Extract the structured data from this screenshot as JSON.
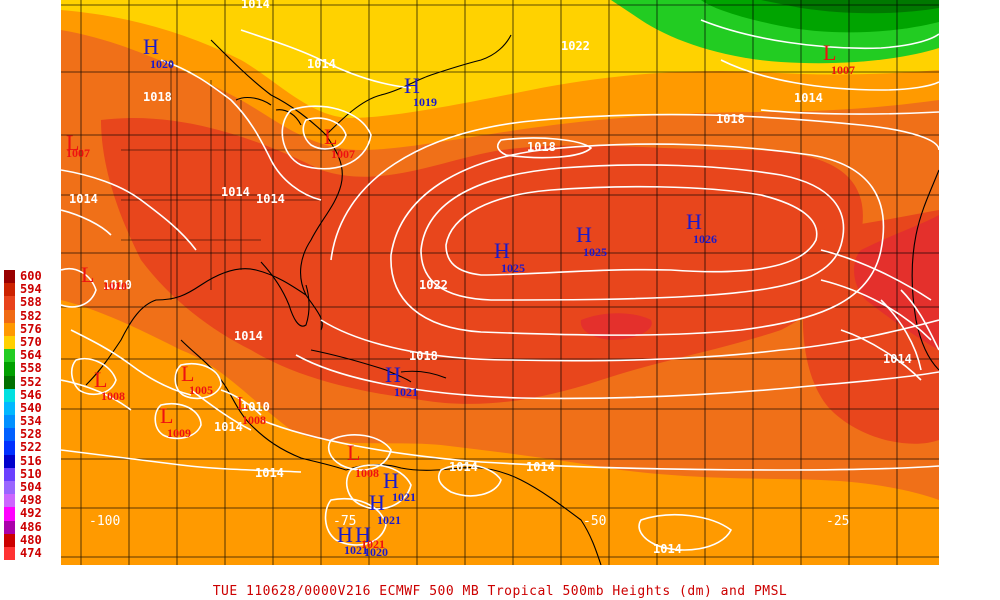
{
  "legend": {
    "entries": [
      {
        "label": "600",
        "color": "#990000"
      },
      {
        "label": "594",
        "color": "#cc2200"
      },
      {
        "label": "588",
        "color": "#e8431c"
      },
      {
        "label": "582",
        "color": "#f06a14"
      },
      {
        "label": "576",
        "color": "#ff9900"
      },
      {
        "label": "570",
        "color": "#ffd000"
      },
      {
        "label": "564",
        "color": "#22cc22"
      },
      {
        "label": "558",
        "color": "#00a000"
      },
      {
        "label": "552",
        "color": "#007000"
      },
      {
        "label": "546",
        "color": "#00e0e0"
      },
      {
        "label": "540",
        "color": "#00b8ff"
      },
      {
        "label": "534",
        "color": "#0090ff"
      },
      {
        "label": "528",
        "color": "#0060ff"
      },
      {
        "label": "522",
        "color": "#0030ff"
      },
      {
        "label": "516",
        "color": "#0000cc"
      },
      {
        "label": "510",
        "color": "#6a40ff"
      },
      {
        "label": "504",
        "color": "#9966ff"
      },
      {
        "label": "498",
        "color": "#cc66ff"
      },
      {
        "label": "492",
        "color": "#ff00ff"
      },
      {
        "label": "486",
        "color": "#aa00aa"
      },
      {
        "label": "480",
        "color": "#cc0000"
      },
      {
        "label": "474",
        "color": "#ff3333"
      }
    ]
  },
  "longitude_labels": [
    "-100",
    "-75",
    "-50",
    "-25"
  ],
  "isobar_labels": [
    "1014",
    "1018",
    "1014",
    "1022",
    "1014",
    "1018",
    "1018",
    "1014",
    "1014",
    "1014",
    "1022",
    "1018",
    "1014",
    "1014",
    "1014",
    "1014",
    "1014",
    "1010",
    "1010",
    "1014",
    "1014"
  ],
  "pressure_centers": [
    {
      "type": "H",
      "value": "1020"
    },
    {
      "type": "H",
      "value": "1019"
    },
    {
      "type": "L",
      "value": "1007"
    },
    {
      "type": "L",
      "value": "1007"
    },
    {
      "type": "L",
      "value": "1007"
    },
    {
      "type": "L",
      "value": "1010"
    },
    {
      "type": "H",
      "value": "1025"
    },
    {
      "type": "H",
      "value": "1025"
    },
    {
      "type": "H",
      "value": "1026"
    },
    {
      "type": "H",
      "value": "1021"
    },
    {
      "type": "L",
      "value": "1008"
    },
    {
      "type": "L",
      "value": "1005"
    },
    {
      "type": "L",
      "value": "1009"
    },
    {
      "type": "L",
      "value": "1008"
    },
    {
      "type": "L",
      "value": "1008"
    },
    {
      "type": "H",
      "value": "1021"
    },
    {
      "type": "H",
      "value": "1021"
    },
    {
      "type": "H",
      "value": "1021"
    },
    {
      "type": "H",
      "value": "1021"
    },
    {
      "type": "H",
      "value": "1020"
    }
  ],
  "caption": "TUE 110628/0000V216  ECMWF  500 MB Tropical 500mb Heights (dm) and PMSL",
  "colors": {
    "high_symbol": "#1a1acc",
    "low_symbol": "#ee1111",
    "isobar": "#ffffff",
    "grid": "#000000",
    "coast": "#000000"
  }
}
